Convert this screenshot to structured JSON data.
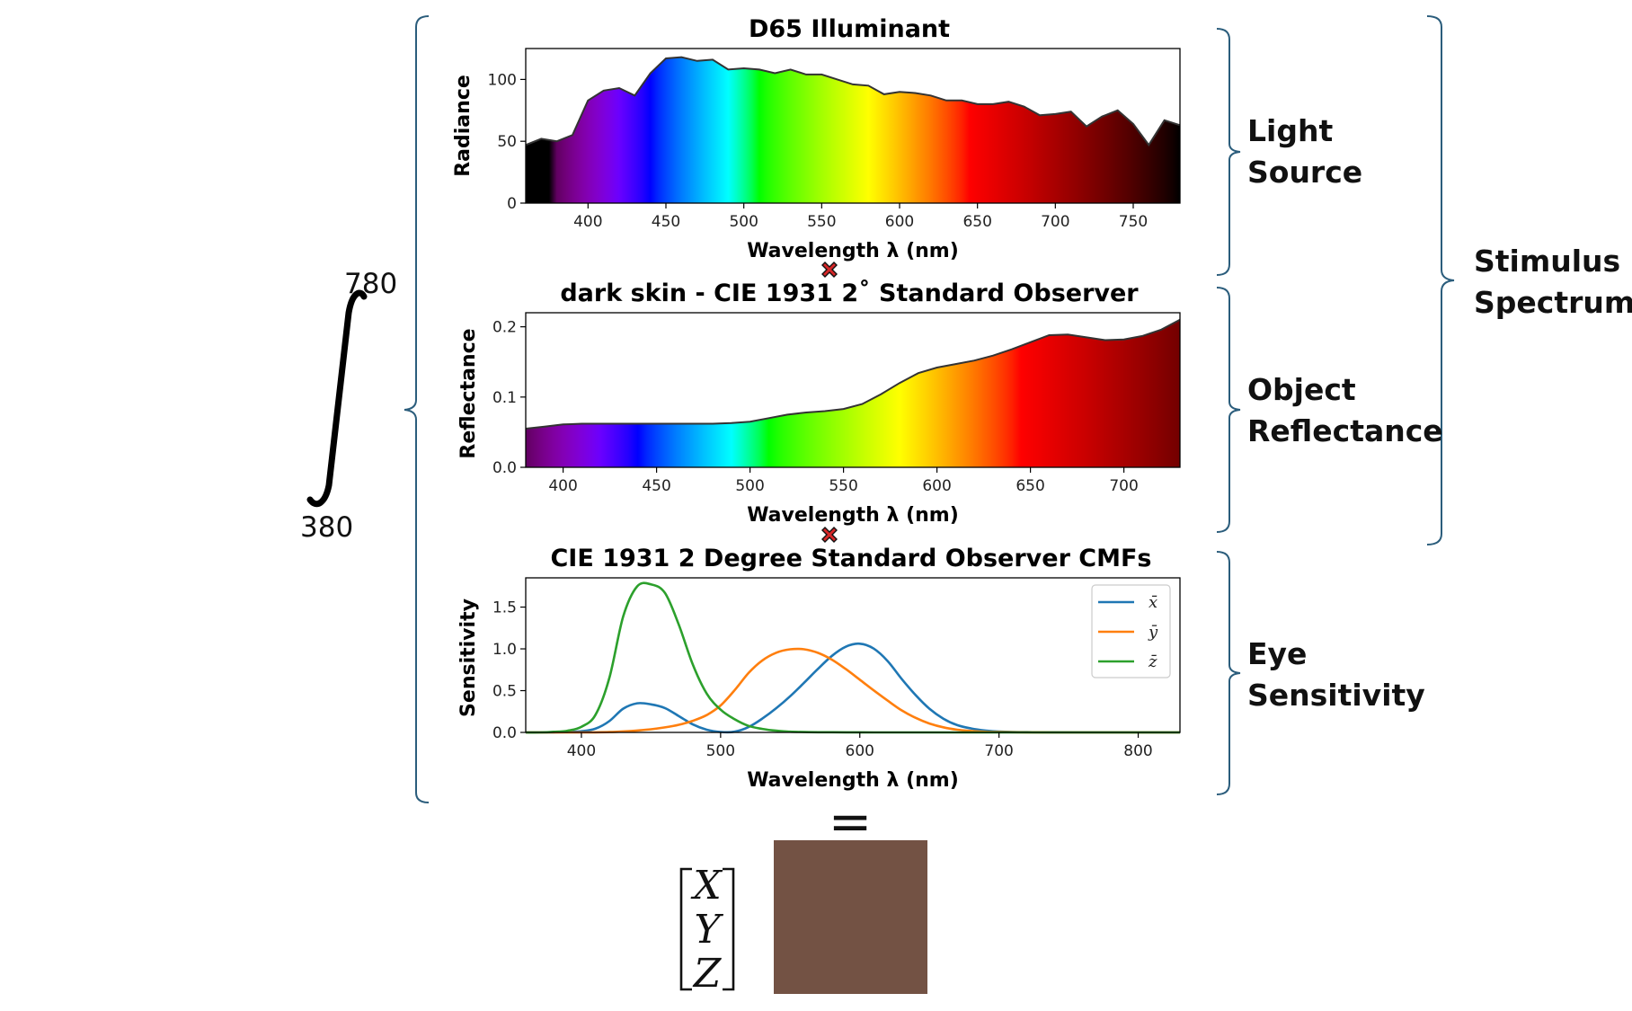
{
  "charts": {
    "illuminant": {
      "title": "D65 Illuminant",
      "xlabel": "Wavelength λ (nm)",
      "ylabel": "Radiance",
      "xlim": [
        360,
        780
      ],
      "ylim": [
        0,
        125
      ],
      "xticks": [
        "400",
        "450",
        "500",
        "550",
        "600",
        "650",
        "700",
        "750"
      ],
      "yticks": [
        "0",
        "50",
        "100"
      ]
    },
    "reflectance": {
      "title": "dark skin - CIE 1931 2˚  Standard Observer",
      "xlabel": "Wavelength λ (nm)",
      "ylabel": "Reflectance",
      "xlim": [
        380,
        730
      ],
      "ylim": [
        0,
        0.22
      ],
      "xticks": [
        "400",
        "450",
        "500",
        "550",
        "600",
        "650",
        "700"
      ],
      "yticks": [
        "0.0",
        "0.1",
        "0.2"
      ]
    },
    "cmf": {
      "title": "CIE 1931 2 Degree Standard Observer CMFs",
      "xlabel": "Wavelength λ (nm)",
      "ylabel": "Sensitivity",
      "xlim": [
        360,
        830
      ],
      "ylim": [
        0,
        1.85
      ],
      "xticks": [
        "400",
        "500",
        "600",
        "700",
        "800"
      ],
      "yticks": [
        "0.0",
        "0.5",
        "1.0",
        "1.5"
      ],
      "legend": [
        "x̄",
        "ȳ",
        "z̄"
      ]
    }
  },
  "chart_data": [
    {
      "type": "area",
      "title": "D65 Illuminant",
      "xlabel": "Wavelength λ (nm)",
      "ylabel": "Radiance",
      "x": [
        360,
        370,
        380,
        390,
        400,
        410,
        420,
        430,
        440,
        450,
        460,
        470,
        480,
        490,
        500,
        510,
        520,
        530,
        540,
        550,
        560,
        570,
        580,
        590,
        600,
        610,
        620,
        630,
        640,
        650,
        660,
        670,
        680,
        690,
        700,
        710,
        720,
        730,
        740,
        750,
        760,
        770,
        780
      ],
      "values": [
        47,
        52,
        50,
        55,
        83,
        91,
        93,
        87,
        105,
        117,
        118,
        115,
        116,
        108,
        109,
        108,
        105,
        108,
        104,
        104,
        100,
        96,
        95,
        88,
        90,
        89,
        87,
        83,
        83,
        80,
        80,
        82,
        78,
        71,
        72,
        74,
        62,
        70,
        75,
        64,
        47,
        67,
        63
      ],
      "xlim": [
        360,
        780
      ],
      "ylim": [
        0,
        125
      ],
      "grid": false
    },
    {
      "type": "area",
      "title": "dark skin - CIE 1931 2˚  Standard Observer",
      "xlabel": "Wavelength λ (nm)",
      "ylabel": "Reflectance",
      "x": [
        380,
        390,
        400,
        410,
        420,
        430,
        440,
        450,
        460,
        470,
        480,
        490,
        500,
        510,
        520,
        530,
        540,
        550,
        560,
        570,
        580,
        590,
        600,
        610,
        620,
        630,
        640,
        650,
        660,
        670,
        680,
        690,
        700,
        710,
        720,
        730
      ],
      "values": [
        0.055,
        0.058,
        0.061,
        0.062,
        0.062,
        0.062,
        0.062,
        0.062,
        0.062,
        0.062,
        0.062,
        0.063,
        0.065,
        0.07,
        0.075,
        0.078,
        0.08,
        0.083,
        0.09,
        0.104,
        0.12,
        0.134,
        0.142,
        0.147,
        0.152,
        0.159,
        0.168,
        0.178,
        0.188,
        0.189,
        0.185,
        0.181,
        0.182,
        0.187,
        0.196,
        0.21
      ],
      "xlim": [
        380,
        730
      ],
      "ylim": [
        0,
        0.22
      ],
      "grid": false
    },
    {
      "type": "line",
      "title": "CIE 1931 2 Degree Standard Observer CMFs",
      "xlabel": "Wavelength λ (nm)",
      "ylabel": "Sensitivity",
      "x": [
        360,
        370,
        380,
        390,
        400,
        410,
        420,
        430,
        440,
        450,
        460,
        470,
        480,
        490,
        500,
        510,
        520,
        530,
        540,
        550,
        560,
        570,
        580,
        590,
        600,
        610,
        620,
        630,
        640,
        650,
        660,
        670,
        680,
        690,
        700,
        720,
        740,
        760,
        780,
        800,
        830
      ],
      "series": [
        {
          "name": "x̄",
          "color": "#1f77b4",
          "values": [
            0,
            0,
            0.001,
            0.004,
            0.014,
            0.044,
            0.134,
            0.284,
            0.348,
            0.336,
            0.291,
            0.195,
            0.096,
            0.032,
            0.005,
            0.009,
            0.063,
            0.166,
            0.29,
            0.433,
            0.595,
            0.762,
            0.916,
            1.026,
            1.062,
            1.003,
            0.854,
            0.642,
            0.448,
            0.284,
            0.165,
            0.087,
            0.047,
            0.023,
            0.011,
            0.003,
            0.001,
            0,
            0,
            0,
            0
          ]
        },
        {
          "name": "ȳ",
          "color": "#ff7f0e",
          "values": [
            0,
            0,
            0,
            0,
            0,
            0.001,
            0.004,
            0.012,
            0.023,
            0.038,
            0.06,
            0.091,
            0.139,
            0.208,
            0.323,
            0.503,
            0.71,
            0.862,
            0.954,
            0.995,
            0.995,
            0.952,
            0.87,
            0.757,
            0.631,
            0.503,
            0.381,
            0.265,
            0.175,
            0.107,
            0.061,
            0.032,
            0.017,
            0.008,
            0.004,
            0.001,
            0,
            0,
            0,
            0,
            0
          ]
        },
        {
          "name": "z̄",
          "color": "#2ca02c",
          "values": [
            0,
            0,
            0.007,
            0.02,
            0.068,
            0.207,
            0.646,
            1.386,
            1.747,
            1.772,
            1.669,
            1.288,
            0.813,
            0.465,
            0.272,
            0.158,
            0.078,
            0.042,
            0.02,
            0.009,
            0.004,
            0.002,
            0.002,
            0.001,
            0.001,
            0,
            0,
            0,
            0,
            0,
            0,
            0,
            0,
            0,
            0,
            0,
            0,
            0,
            0,
            0,
            0
          ]
        }
      ],
      "xlim": [
        360,
        830
      ],
      "ylim": [
        0,
        1.85
      ],
      "legend": "top-right",
      "grid": false
    }
  ],
  "side_labels": {
    "light_source": [
      "Light",
      "Source"
    ],
    "object_reflectance": [
      "Object",
      "Reflectance"
    ],
    "eye_sensitivity": [
      "Eye",
      "Sensitivity"
    ],
    "stimulus_spectrum": [
      "Stimulus",
      "Spectrum"
    ]
  },
  "integral": {
    "upper": "780",
    "lower": "380"
  },
  "result": {
    "equals": "=",
    "matrix": [
      "X",
      "Y",
      "Z"
    ],
    "swatch_color": "#735244"
  },
  "colors": {
    "cross_marker": "#d62728",
    "bracket": "#2b5d7c"
  }
}
